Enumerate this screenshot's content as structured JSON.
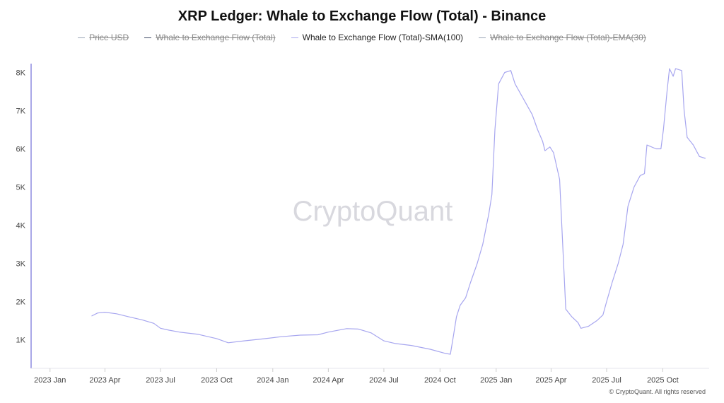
{
  "chart_data": {
    "type": "line",
    "title": "XRP Ledger: Whale to Exchange Flow (Total) - Binance",
    "legend": [
      {
        "name": "Price USD",
        "visible": false,
        "color": "#9aa4b4"
      },
      {
        "name": "Whale to Exchange Flow (Total)",
        "visible": false,
        "color": "#3f4a66"
      },
      {
        "name": "Whale to Exchange Flow (Total)-SMA(100)",
        "visible": true,
        "color": "#a7a6ef"
      },
      {
        "name": "Whale to Exchange Flow (Total)-EMA(30)",
        "visible": false,
        "color": "#9aa4b4"
      }
    ],
    "legend_placement": "top-center",
    "watermark": "CryptoQuant",
    "credit": "© CryptoQuant. All rights reserved",
    "grid": false,
    "x_ticks": [
      "2023 Jan",
      "2023 Apr",
      "2023 Jul",
      "2023 Oct",
      "2024 Jan",
      "2024 Apr",
      "2024 Jul",
      "2024 Oct",
      "2025 Jan",
      "2025 Apr",
      "2025 Jul",
      "2025 Oct"
    ],
    "y_ticks": [
      {
        "value": 1000,
        "label": "1K"
      },
      {
        "value": 2000,
        "label": "2K"
      },
      {
        "value": 3000,
        "label": "3K"
      },
      {
        "value": 4000,
        "label": "4K"
      },
      {
        "value": 5000,
        "label": "5K"
      },
      {
        "value": 6000,
        "label": "6K"
      },
      {
        "value": 7000,
        "label": "7K"
      },
      {
        "value": 8000,
        "label": "8K"
      }
    ],
    "xlim": [
      "2022-12-01",
      "2025-12-16"
    ],
    "ylim": [
      200,
      8500
    ],
    "series": [
      {
        "name": "Whale to Exchange Flow (Total)-SMA(100)",
        "color": "#a7a6ef",
        "points": [
          [
            "2023-03-10",
            1620
          ],
          [
            "2023-03-20",
            1700
          ],
          [
            "2023-04-01",
            1720
          ],
          [
            "2023-04-20",
            1680
          ],
          [
            "2023-05-10",
            1600
          ],
          [
            "2023-06-01",
            1520
          ],
          [
            "2023-06-20",
            1430
          ],
          [
            "2023-07-01",
            1300
          ],
          [
            "2023-07-15",
            1250
          ],
          [
            "2023-08-01",
            1200
          ],
          [
            "2023-09-01",
            1140
          ],
          [
            "2023-10-01",
            1030
          ],
          [
            "2023-10-20",
            920
          ],
          [
            "2023-11-15",
            970
          ],
          [
            "2023-12-15",
            1020
          ],
          [
            "2024-01-15",
            1080
          ],
          [
            "2024-02-15",
            1120
          ],
          [
            "2024-03-15",
            1130
          ],
          [
            "2024-04-01",
            1200
          ],
          [
            "2024-05-01",
            1290
          ],
          [
            "2024-05-20",
            1280
          ],
          [
            "2024-06-10",
            1180
          ],
          [
            "2024-07-01",
            970
          ],
          [
            "2024-07-20",
            900
          ],
          [
            "2024-08-15",
            850
          ],
          [
            "2024-09-15",
            750
          ],
          [
            "2024-10-10",
            640
          ],
          [
            "2024-10-18",
            620
          ],
          [
            "2024-10-23",
            1100
          ],
          [
            "2024-10-28",
            1600
          ],
          [
            "2024-11-03",
            1900
          ],
          [
            "2024-11-12",
            2100
          ],
          [
            "2024-11-20",
            2500
          ],
          [
            "2024-12-01",
            3000
          ],
          [
            "2024-12-10",
            3500
          ],
          [
            "2024-12-20",
            4300
          ],
          [
            "2024-12-25",
            4800
          ],
          [
            "2024-12-30",
            6500
          ],
          [
            "2025-01-05",
            7700
          ],
          [
            "2025-01-15",
            8000
          ],
          [
            "2025-01-25",
            8050
          ],
          [
            "2025-02-01",
            7700
          ],
          [
            "2025-02-15",
            7300
          ],
          [
            "2025-03-01",
            6900
          ],
          [
            "2025-03-10",
            6500
          ],
          [
            "2025-03-18",
            6200
          ],
          [
            "2025-03-22",
            5950
          ],
          [
            "2025-03-30",
            6050
          ],
          [
            "2025-04-05",
            5900
          ],
          [
            "2025-04-15",
            5200
          ],
          [
            "2025-04-25",
            1800
          ],
          [
            "2025-05-05",
            1600
          ],
          [
            "2025-05-15",
            1450
          ],
          [
            "2025-05-20",
            1300
          ],
          [
            "2025-06-01",
            1350
          ],
          [
            "2025-06-15",
            1500
          ],
          [
            "2025-06-25",
            1650
          ],
          [
            "2025-07-01",
            2000
          ],
          [
            "2025-07-10",
            2500
          ],
          [
            "2025-07-20",
            3000
          ],
          [
            "2025-07-28",
            3500
          ],
          [
            "2025-08-05",
            4500
          ],
          [
            "2025-08-15",
            5000
          ],
          [
            "2025-08-25",
            5300
          ],
          [
            "2025-09-01",
            5350
          ],
          [
            "2025-09-05",
            6100
          ],
          [
            "2025-09-20",
            6000
          ],
          [
            "2025-09-28",
            6000
          ],
          [
            "2025-10-02",
            6500
          ],
          [
            "2025-10-08",
            7500
          ],
          [
            "2025-10-12",
            8100
          ],
          [
            "2025-10-18",
            7900
          ],
          [
            "2025-10-22",
            8100
          ],
          [
            "2025-11-01",
            8050
          ],
          [
            "2025-11-05",
            7000
          ],
          [
            "2025-11-10",
            6300
          ],
          [
            "2025-11-20",
            6100
          ],
          [
            "2025-11-30",
            5800
          ],
          [
            "2025-12-10",
            5750
          ]
        ]
      }
    ]
  }
}
